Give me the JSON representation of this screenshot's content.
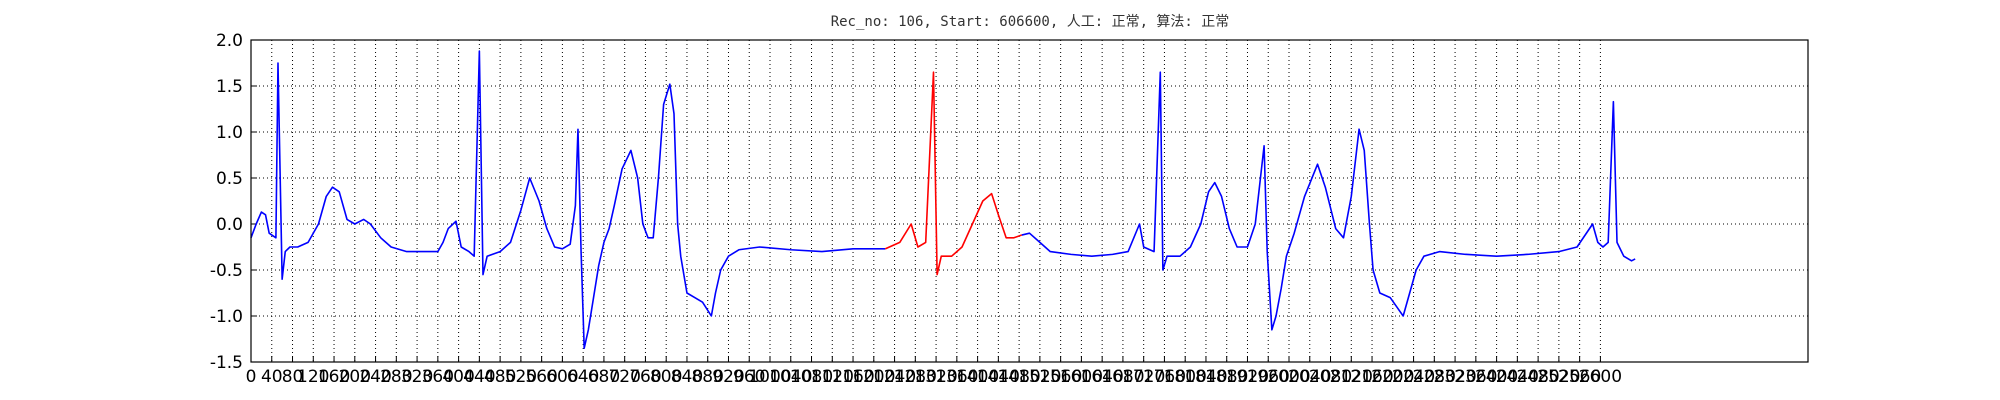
{
  "chart_data": {
    "type": "line",
    "title": "Rec_no: 106, Start: 606600, 人工: 正常, 算法: 正常",
    "xlim": [
      0,
      3000
    ],
    "ylim": [
      -1.5,
      2
    ],
    "grid": true,
    "xticks": [
      0,
      40,
      80,
      120,
      160,
      200,
      240,
      280,
      320,
      360,
      400,
      440,
      480,
      520,
      560,
      600,
      640,
      680,
      720,
      760,
      800,
      840,
      880,
      920,
      960,
      1000,
      1040,
      1080,
      1120,
      1160,
      1200,
      1240,
      1280,
      1320,
      1360,
      1400,
      1440,
      1480,
      1520,
      1560,
      1600,
      1640,
      1680,
      1720,
      1760,
      1800,
      1840,
      1880,
      1920,
      1960,
      2000,
      2040,
      2080,
      2120,
      2160,
      2200,
      2240,
      2280,
      2320,
      2360,
      2400,
      2440,
      2480,
      2520,
      2560,
      2600
    ],
    "yticks": [
      -1.5,
      {
        "value": -1,
        "label": "-1.0"
      },
      -0.5,
      {
        "value": 0,
        "label": "0.0"
      },
      0.5,
      {
        "value": 1,
        "label": "1.0"
      },
      1.5,
      {
        "value": 2,
        "label": "2.0"
      }
    ],
    "x": [
      0,
      10,
      20,
      28,
      35,
      48,
      52,
      60,
      66,
      75,
      90,
      110,
      130,
      145,
      157,
      170,
      185,
      200,
      217,
      230,
      250,
      270,
      300,
      340,
      360,
      370,
      380,
      395,
      405,
      420,
      430,
      440,
      447,
      455,
      480,
      500,
      520,
      537,
      555,
      570,
      585,
      600,
      615,
      625,
      630,
      636,
      642,
      650,
      660,
      670,
      680,
      690,
      700,
      715,
      732,
      745,
      755,
      765,
      775,
      785,
      795,
      807,
      815,
      822,
      828,
      840,
      855,
      870,
      887,
      895,
      905,
      920,
      940,
      980,
      1040,
      1100,
      1160,
      1222,
      1230,
      1250,
      1272,
      1285,
      1300,
      1315,
      1322,
      1330,
      1350,
      1370,
      1390,
      1410,
      1427,
      1440,
      1455,
      1470,
      1485,
      1500,
      1520,
      1540,
      1580,
      1620,
      1660,
      1690,
      1712,
      1720,
      1740,
      1752,
      1757,
      1765,
      1790,
      1810,
      1830,
      1845,
      1857,
      1870,
      1885,
      1900,
      1920,
      1935,
      1952,
      1958,
      1967,
      1975,
      1985,
      1995,
      2010,
      2030,
      2055,
      2070,
      2090,
      2105,
      2120,
      2135,
      2145,
      2155,
      2162,
      2175,
      2195,
      2220,
      2230,
      2245,
      2260,
      2290,
      2340,
      2400,
      2460,
      2520,
      2555,
      2585,
      2595,
      2605,
      2615,
      2625,
      2632,
      2645,
      2660,
      2667
    ],
    "series": [
      {
        "color": "#0000ff",
        "values": [
          -0.15,
          0.0,
          0.13,
          0.1,
          -0.1,
          -0.15,
          1.75,
          -0.6,
          -0.3,
          -0.25,
          -0.25,
          -0.2,
          0.0,
          0.3,
          0.4,
          0.35,
          0.05,
          0.0,
          0.05,
          0.0,
          -0.15,
          -0.25,
          -0.3,
          -0.3,
          -0.3,
          -0.2,
          -0.05,
          0.03,
          -0.25,
          -0.3,
          -0.35,
          1.88,
          -0.55,
          -0.35,
          -0.3,
          -0.2,
          0.15,
          0.5,
          0.25,
          -0.05,
          -0.25,
          -0.27,
          -0.22,
          0.2,
          1.03,
          -0.3,
          -1.35,
          -1.15,
          -0.8,
          -0.45,
          -0.2,
          -0.05,
          0.2,
          0.6,
          0.8,
          0.5,
          0.0,
          -0.15,
          -0.15,
          0.5,
          1.3,
          1.52,
          1.2,
          0.0,
          -0.35,
          -0.75,
          -0.8,
          -0.85,
          -1.0,
          -0.75,
          -0.5,
          -0.35,
          -0.28,
          -0.25,
          -0.28,
          -0.3,
          -0.27,
          -0.27,
          null,
          null,
          null,
          null,
          null,
          null,
          null,
          null,
          null,
          null,
          null,
          null,
          null,
          null,
          null,
          null,
          -0.12,
          -0.1,
          -0.2,
          -0.3,
          -0.33,
          -0.35,
          -0.33,
          -0.3,
          0.0,
          -0.25,
          -0.3,
          1.65,
          -0.5,
          -0.35,
          -0.35,
          -0.25,
          0.0,
          0.35,
          0.45,
          0.3,
          -0.05,
          -0.25,
          -0.25,
          0.0,
          0.85,
          -0.3,
          -1.15,
          -1.0,
          -0.7,
          -0.35,
          -0.1,
          0.3,
          0.65,
          0.4,
          -0.05,
          -0.15,
          0.3,
          1.03,
          0.8,
          0.0,
          -0.5,
          -0.75,
          -0.8,
          -1.0,
          -0.8,
          -0.5,
          -0.35,
          -0.3,
          -0.33,
          -0.35,
          -0.33,
          -0.3,
          -0.25,
          0.0,
          -0.2,
          -0.25,
          -0.2,
          1.33,
          -0.2,
          -0.35,
          -0.4,
          -0.38
        ]
      },
      {
        "color": "#ff0000",
        "values": [
          null,
          null,
          null,
          null,
          null,
          null,
          null,
          null,
          null,
          null,
          null,
          null,
          null,
          null,
          null,
          null,
          null,
          null,
          null,
          null,
          null,
          null,
          null,
          null,
          null,
          null,
          null,
          null,
          null,
          null,
          null,
          null,
          null,
          null,
          null,
          null,
          null,
          null,
          null,
          null,
          null,
          null,
          null,
          null,
          null,
          null,
          null,
          null,
          null,
          null,
          null,
          null,
          null,
          null,
          null,
          null,
          null,
          null,
          null,
          null,
          null,
          null,
          null,
          null,
          null,
          null,
          null,
          null,
          null,
          null,
          null,
          null,
          null,
          null,
          null,
          null,
          null,
          -0.27,
          -0.25,
          -0.2,
          0.0,
          -0.25,
          -0.2,
          1.65,
          -0.55,
          -0.35,
          -0.35,
          -0.25,
          0.0,
          0.25,
          0.33,
          0.1,
          -0.15,
          -0.15,
          -0.12,
          null,
          null,
          null,
          null,
          null,
          null,
          null,
          null,
          null,
          null,
          null,
          null,
          null,
          null,
          null,
          null,
          null,
          null,
          null,
          null,
          null,
          null,
          null,
          null,
          null,
          null,
          null,
          null,
          null,
          null,
          null,
          null,
          null,
          null,
          null,
          null,
          null,
          null,
          null,
          null,
          null,
          null,
          null,
          null,
          null,
          null,
          null,
          null,
          null,
          null,
          null,
          null,
          null,
          null,
          null,
          null,
          null,
          null,
          null,
          null,
          null
        ]
      }
    ]
  }
}
